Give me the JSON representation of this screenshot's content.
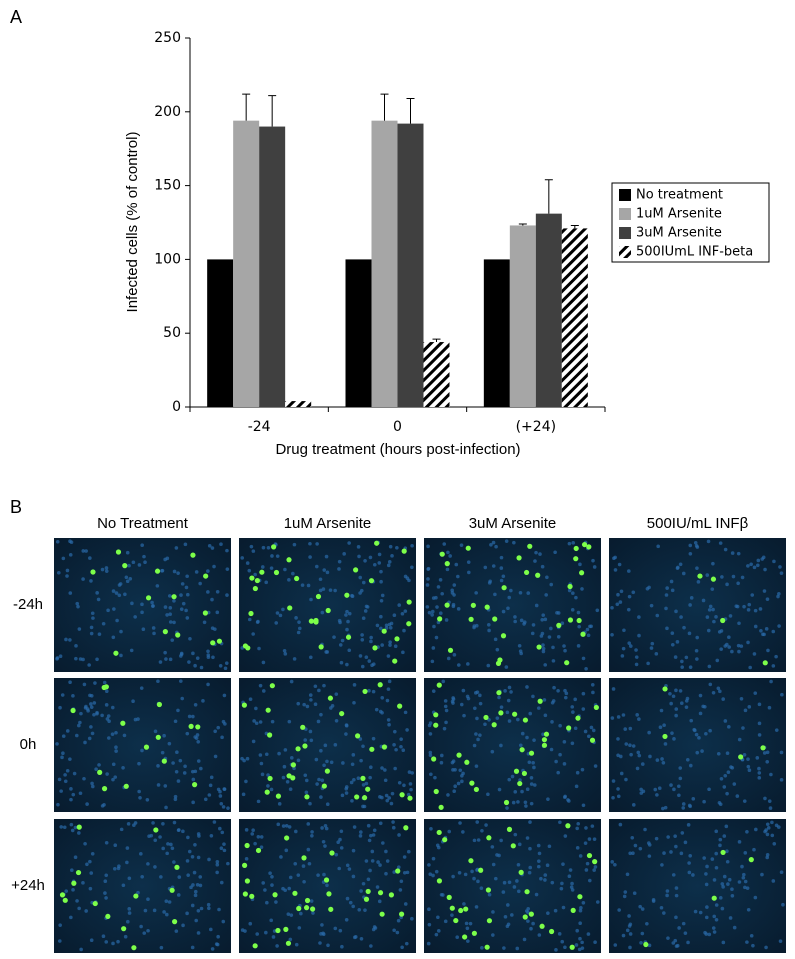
{
  "panel_labels": [
    "A",
    "B"
  ],
  "chart_data": {
    "type": "bar",
    "x_label": "Drug treatment (hours post-infection)",
    "y_label": "Infected cells (% of control)",
    "categories": [
      "-24",
      "0",
      "(+24)"
    ],
    "series": [
      {
        "name": "No treatment",
        "color": "#000000",
        "values": [
          100,
          100,
          100
        ],
        "errors": [
          0,
          0,
          0
        ]
      },
      {
        "name": "1uM Arsenite",
        "color": "#a6a6a6",
        "values": [
          194,
          194,
          123
        ],
        "errors": [
          18,
          18,
          1
        ]
      },
      {
        "name": "3uM Arsenite",
        "color": "#404040",
        "values": [
          190,
          192,
          131
        ],
        "errors": [
          21,
          17,
          23
        ]
      },
      {
        "name": "500IUmL INF-beta",
        "color": "#000000",
        "hatch": true,
        "values": [
          4,
          44,
          121
        ],
        "errors": [
          0,
          2,
          2
        ]
      }
    ],
    "ylim": [
      0,
      250
    ],
    "yticks": [
      0,
      50,
      100,
      150,
      200,
      250
    ],
    "grid": false,
    "legend": "right"
  },
  "image_grid": {
    "columns": [
      "No Treatment",
      "1uM Arsenite",
      "3uM Arsenite",
      "500IU/mL INFβ"
    ],
    "rows": [
      "-24h",
      "0h",
      "+24h"
    ]
  }
}
